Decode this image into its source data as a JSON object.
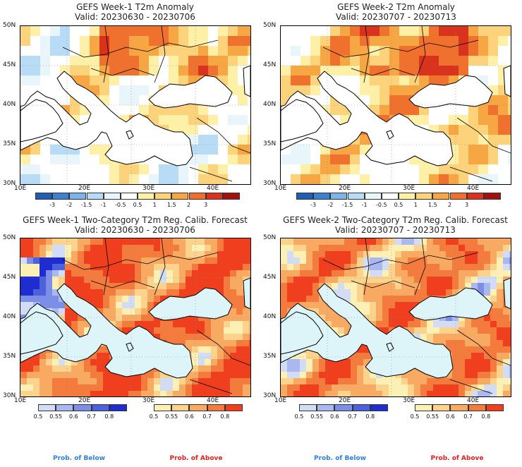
{
  "panels": [
    {
      "title": "GEFS Week-1 T2m Anomaly",
      "valid": "Valid: 20230630 - 20230706",
      "kind": "anomaly",
      "variant": 1
    },
    {
      "title": "GEFS Week-2 T2m Anomaly",
      "valid": "Valid: 20230707 - 20230713",
      "kind": "anomaly",
      "variant": 2
    },
    {
      "title": "GEFS Week-1 Two-Category T2m Reg. Calib. Forecast",
      "valid": "Valid: 20230630 - 20230706",
      "kind": "prob",
      "variant": 1
    },
    {
      "title": "GEFS Week-2 Two-Category T2m Reg. Calib. Forecast",
      "valid": "Valid: 20230707 - 20230713",
      "kind": "prob",
      "variant": 2
    }
  ],
  "axes": {
    "lat_labels": [
      "50N",
      "45N",
      "40N",
      "35N",
      "30N"
    ],
    "lon_labels": [
      "10E",
      "20E",
      "30E",
      "40E"
    ]
  },
  "anomaly_colorbar": {
    "labels": [
      "-3",
      "-2",
      "-1.5",
      "-1",
      "-0.5",
      "0.5",
      "1",
      "1.5",
      "2",
      "3"
    ],
    "colors": [
      "#1e5fb4",
      "#3d7fd0",
      "#7eb3e8",
      "#b9dcf6",
      "#e8f6fb",
      "#ffffff",
      "#fff0a8",
      "#fcd37a",
      "#f7a644",
      "#f0702d",
      "#d9331e",
      "#a31010"
    ]
  },
  "prob_colorbar": {
    "below": {
      "labels": [
        "0.5",
        "0.55",
        "0.6",
        "0.7",
        "0.8"
      ],
      "colors": [
        "#d3dcf6",
        "#a9b8ef",
        "#7c8ee6",
        "#4e61dd",
        "#1e2cd0"
      ],
      "caption": "Prob. of Below",
      "caption_color": "#2f7fd8"
    },
    "above": {
      "labels": [
        "0.5",
        "0.55",
        "0.6",
        "0.7",
        "0.8"
      ],
      "colors": [
        "#fdf0b4",
        "#fbd38c",
        "#f8aa63",
        "#f47b3e",
        "#ef3f1e"
      ],
      "caption": "Prob. of Above",
      "caption_color": "#e02020"
    }
  },
  "colors": {
    "sea": "#ddf4f9",
    "coast": "#000000"
  }
}
